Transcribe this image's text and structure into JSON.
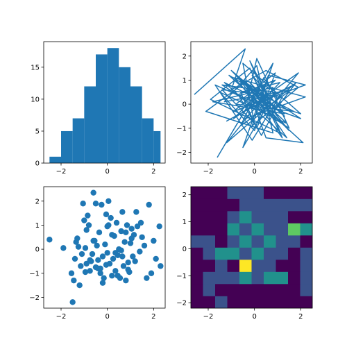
{
  "chart_data": [
    {
      "type": "bar",
      "title": "",
      "xlabel": "",
      "ylabel": "",
      "xlim": [
        -2.75,
        2.5
      ],
      "ylim": [
        0,
        19
      ],
      "x_ticks": [
        "−2",
        "0",
        "2"
      ],
      "y_ticks": [
        "0",
        "5",
        "10",
        "15"
      ],
      "bin_edges": [
        -2.5,
        -2.0,
        -1.5,
        -1.0,
        -0.5,
        0.0,
        0.5,
        1.0,
        1.5,
        2.0,
        2.3
      ],
      "values": [
        1,
        5,
        7,
        12,
        17,
        18,
        15,
        12,
        7,
        5
      ],
      "color": "#1f77b4"
    },
    {
      "type": "line",
      "title": "",
      "xlabel": "",
      "ylabel": "",
      "xlim": [
        -2.75,
        2.5
      ],
      "ylim": [
        -2.45,
        2.6
      ],
      "x_ticks": [
        "−2",
        "0",
        "2"
      ],
      "y_ticks": [
        "−2",
        "−1",
        "0",
        "1",
        "2"
      ],
      "x": [
        -2.6,
        -0.4,
        -1.0,
        0.5,
        1.9,
        -0.1,
        0.8,
        -1.6,
        0.3,
        1.2,
        -0.7,
        2.0,
        -0.3,
        0.1,
        1.5,
        -1.4,
        0.9,
        -0.5,
        0.6,
        2.2,
        -0.9,
        0.2,
        1.1,
        -1.9,
        -0.2,
        0.7,
        1.8,
        -1.2,
        0.4,
        -0.6,
        1.4,
        -1.5,
        0.0,
        0.9,
        -0.8,
        1.7,
        -0.3,
        0.5,
        2.1,
        -1.1,
        0.3,
        1.3,
        -0.4,
        -2.1,
        0.8,
        0.1,
        -1.3,
        1.6,
        -0.6,
        0.4,
        1.0,
        -0.1,
        -1.7,
        0.6,
        1.9,
        -0.9,
        0.2,
        -0.2,
        1.5,
        -1.0,
        0.7,
        2.0,
        -0.5,
        0.0,
        -1.4,
        1.2,
        0.3,
        -0.7,
        0.9,
        -0.3,
        1.7,
        -1.2,
        0.5,
        -0.1,
        1.3,
        -1.8,
        0.8,
        0.1,
        -0.6,
        1.1,
        -0.4,
        2.2,
        -0.9,
        0.4,
        0.0,
        1.4,
        -1.3,
        0.6,
        -0.2,
        1.0
      ],
      "y": [
        0.4,
        2.3,
        0.6,
        1.4,
        0.7,
        -0.9,
        1.7,
        -2.2,
        0.9,
        -1.4,
        1.1,
        -0.6,
        0.2,
        1.9,
        -1.0,
        0.8,
        0.5,
        -1.8,
        1.2,
        0.8,
        -0.3,
        0.6,
        -1.2,
        0.2,
        1.5,
        -0.5,
        0.9,
        -1.6,
        0.3,
        1.0,
        -0.8,
        0.5,
        -1.1,
        1.3,
        0.0,
        -0.3,
        0.7,
        -1.4,
        -1.6,
        1.2,
        0.4,
        -0.5,
        0.9,
        -0.3,
        -1.2,
        1.6,
        0.1,
        0.6,
        -0.9,
        1.1,
        0.2,
        -1.5,
        0.8,
        -0.2,
        1.3,
        -0.6,
        0.5,
        0.9,
        -1.1,
        1.4,
        0.0,
        -0.4,
        1.7,
        -0.8,
        0.6,
        0.3,
        -1.3,
        0.4,
        1.0,
        -0.1,
        0.8,
        -0.7,
        0.2,
        1.2,
        -0.4,
        0.1,
        0.7,
        -1.0,
        0.5,
        0.9,
        -0.6,
        0.3,
        1.1,
        -0.2,
        0.6,
        -1.4,
        0.9,
        0.0,
        1.8,
        -0.5
      ],
      "color": "#1f77b4"
    },
    {
      "type": "scatter",
      "title": "",
      "xlabel": "",
      "ylabel": "",
      "xlim": [
        -2.75,
        2.5
      ],
      "ylim": [
        -2.45,
        2.6
      ],
      "x_ticks": [
        "−2",
        "0",
        "2"
      ],
      "y_ticks": [
        "−2",
        "−1",
        "0",
        "1",
        "2"
      ],
      "x": [
        -2.5,
        -1.9,
        -1.55,
        -1.5,
        -1.45,
        -1.4,
        -1.3,
        -1.25,
        -1.2,
        -1.15,
        -1.1,
        -1.05,
        -1.0,
        -0.95,
        -0.9,
        -0.9,
        -0.85,
        -0.8,
        -0.75,
        -0.7,
        -0.65,
        -0.6,
        -0.55,
        -0.5,
        -0.5,
        -0.45,
        -0.4,
        -0.35,
        -0.3,
        -0.25,
        -0.2,
        -0.15,
        -0.1,
        -0.05,
        0.0,
        0.0,
        0.05,
        0.1,
        0.15,
        0.2,
        0.25,
        0.3,
        0.35,
        0.4,
        0.45,
        0.5,
        0.55,
        0.6,
        0.65,
        0.7,
        0.75,
        0.8,
        0.85,
        0.9,
        0.95,
        1.0,
        1.05,
        1.1,
        1.15,
        1.2,
        1.3,
        1.4,
        1.5,
        1.6,
        1.7,
        1.8,
        1.9,
        2.0,
        2.1,
        2.25,
        2.3,
        -0.4,
        0.6,
        0.2,
        -0.2,
        -0.6,
        0.9,
        1.25,
        -0.95,
        0.35,
        -0.75,
        0.05,
        0.8,
        -1.35,
        0.45,
        1.05,
        -0.3,
        0.65,
        1.45,
        -0.05
      ],
      "y": [
        0.4,
        0.05,
        -1.0,
        -2.2,
        -1.3,
        -0.4,
        0.45,
        0.1,
        -1.5,
        -0.7,
        -0.2,
        1.9,
        1.2,
        -0.95,
        -0.6,
        0.8,
        1.4,
        1.0,
        -0.9,
        -0.5,
        -0.2,
        2.35,
        0.35,
        -0.75,
        1.9,
        0.15,
        -0.45,
        0.7,
        -1.0,
        1.85,
        -0.3,
        -1.2,
        0.2,
        1.45,
        -0.15,
        0.95,
        2.0,
        -0.6,
        1.3,
        -1.1,
        -0.4,
        0.55,
        -0.9,
        1.1,
        -0.25,
        0.0,
        -1.2,
        0.75,
        1.55,
        -0.7,
        0.3,
        -1.3,
        1.0,
        -0.55,
        -0.95,
        0.25,
        0.85,
        -0.3,
        0.6,
        -0.5,
        0.95,
        -0.1,
        0.5,
        0.15,
        -1.2,
        1.85,
        -1.0,
        0.35,
        -0.4,
        0.95,
        -0.7,
        -0.8,
        -0.05,
        0.6,
        -1.4,
        0.35,
        -0.85,
        1.55,
        0.05,
        -0.15,
        -0.45,
        1.0,
        0.7,
        0.3,
        -1.1,
        0.45,
        -0.8,
        -0.3,
        1.1,
        -0.65
      ],
      "color": "#1f77b4"
    },
    {
      "type": "heatmap",
      "title": "",
      "xlabel": "",
      "ylabel": "",
      "x_ticks": [
        "−2",
        "0",
        "2"
      ],
      "y_ticks": [
        "−2",
        "−1",
        "0",
        "1",
        "2"
      ],
      "x_edges": [
        -2.75,
        -2.225,
        -1.7,
        -1.175,
        -0.65,
        -0.125,
        0.4,
        0.925,
        1.45,
        1.975,
        2.5
      ],
      "y_edges": [
        -2.2,
        -1.75,
        -1.3,
        -0.85,
        -0.4,
        0.05,
        0.5,
        0.95,
        1.4,
        1.85,
        2.3
      ],
      "values": [
        [
          0,
          0,
          1,
          0,
          0,
          0,
          0,
          0,
          0,
          0
        ],
        [
          0,
          1,
          0,
          0,
          0,
          0,
          0,
          0,
          0,
          1
        ],
        [
          0,
          1,
          1,
          1,
          2,
          1,
          2,
          2,
          0,
          1
        ],
        [
          0,
          0,
          1,
          0,
          5,
          1,
          1,
          0,
          0,
          1
        ],
        [
          0,
          1,
          2,
          3,
          1,
          2,
          1,
          1,
          0,
          1
        ],
        [
          1,
          1,
          0,
          1,
          2,
          1,
          2,
          1,
          1,
          0
        ],
        [
          0,
          0,
          0,
          2,
          1,
          3,
          1,
          1,
          4,
          2
        ],
        [
          0,
          0,
          0,
          1,
          2,
          1,
          1,
          1,
          0,
          0
        ],
        [
          0,
          0,
          0,
          0,
          1,
          1,
          1,
          1,
          1,
          1
        ],
        [
          0,
          0,
          0,
          1,
          1,
          1,
          0,
          0,
          0,
          0
        ]
      ],
      "colormap": [
        "#440154",
        "#3b528b",
        "#21918c",
        "#5ec962",
        "#fde725"
      ]
    }
  ]
}
